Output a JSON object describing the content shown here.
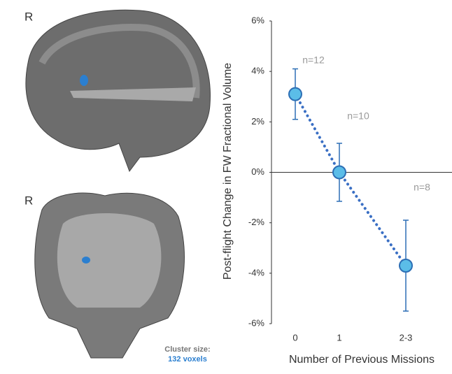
{
  "panel_labels": [
    "R",
    "R"
  ],
  "cluster_label": "Cluster size:",
  "cluster_value": "132 voxels",
  "chart_data": {
    "type": "line",
    "xlabel": "Number of Previous Missions",
    "ylabel": "Post-flight Change in FW Fractional Volume",
    "categories": [
      "0",
      "1",
      "2-3"
    ],
    "values": [
      3.1,
      0,
      -3.7
    ],
    "errors": [
      1.0,
      1.15,
      1.8
    ],
    "annotations": [
      "n=12",
      "n=10",
      "n=8"
    ],
    "color": "#3a6fc4",
    "marker_fill": "#5bbde8",
    "marker_stroke": "#2d6fb5",
    "ylim": [
      -6,
      6
    ],
    "yticks": [
      {
        "value": 6,
        "label": "6%"
      },
      {
        "value": 4,
        "label": "4%"
      },
      {
        "value": 2,
        "label": "2%"
      },
      {
        "value": 0,
        "label": "0%"
      },
      {
        "value": -2,
        "label": "-2%"
      },
      {
        "value": -4,
        "label": "-4%"
      },
      {
        "value": -6,
        "label": "-6%"
      }
    ]
  }
}
